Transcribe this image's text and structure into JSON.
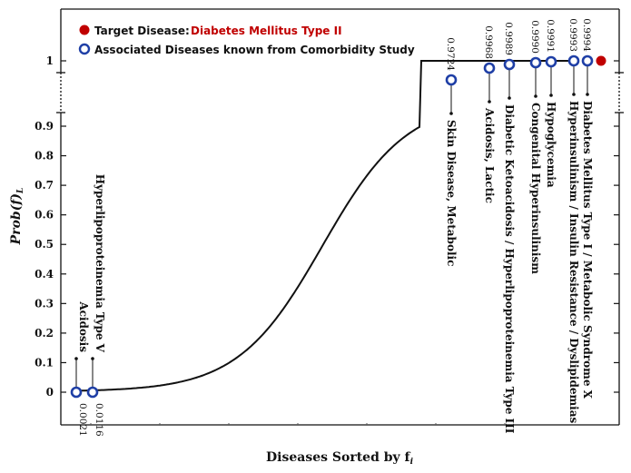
{
  "chart_data": {
    "type": "line",
    "ylabel": "Prob(f)",
    "ylabel_subscript": "L",
    "xlabel": "Diseases Sorted by f",
    "xlabel_subscript": "i",
    "y_ticks": [
      "0",
      "0.1",
      "0.2",
      "0.3",
      "0.4",
      "0.5",
      "0.6",
      "0.7",
      "0.8",
      "0.9",
      "1"
    ],
    "y_axis_break": "between 0.9 and 1",
    "legend": {
      "position": "top-left",
      "target_label": "Target Disease:",
      "target_name": "Diabetes Mellitus Type II",
      "associated_label": "Associated Diseases known from Comorbidity Study"
    },
    "curve": {
      "shape": "sigmoid",
      "from": 0.0021,
      "to": 0.9994
    },
    "associated_points": [
      {
        "value_label": "0.0021",
        "value": 0.0021,
        "labels": [
          "Acidosis"
        ]
      },
      {
        "value_label": "0.0116",
        "value": 0.0116,
        "labels": [
          "Hyperlipoproteinemia Type V"
        ]
      },
      {
        "value_label": "0.9724",
        "value": 0.9724,
        "labels": [
          "Skin Disease, Metabolic"
        ]
      },
      {
        "value_label": "0.9968",
        "value": 0.9968,
        "labels": [
          "Acidosis, Lactic"
        ]
      },
      {
        "value_label": "0.9989",
        "value": 0.9989,
        "labels": [
          "Diabetic Ketoacidosis / Hyperlipoproteinemia Type III"
        ]
      },
      {
        "value_label": "0.9990",
        "value": 0.999,
        "labels": [
          "Congenital Hyperinsulinism"
        ]
      },
      {
        "value_label": "0.9991",
        "value": 0.9991,
        "labels": [
          "Hypoglycemia"
        ]
      },
      {
        "value_label": "0.9993",
        "value": 0.9993,
        "labels": [
          "Hyperinsulinism / Insulin Resistance / Dyslipidemias"
        ]
      },
      {
        "value_label": "0.9994",
        "value": 0.9994,
        "labels": [
          "Diabetes Mellitus Type I / Metabolic Syndrome X"
        ]
      }
    ],
    "target_point": {
      "value": 1.0,
      "color": "#c00000"
    },
    "colors": {
      "associated": "#1f3fa6",
      "target": "#c00000",
      "curve": "#111111"
    }
  }
}
